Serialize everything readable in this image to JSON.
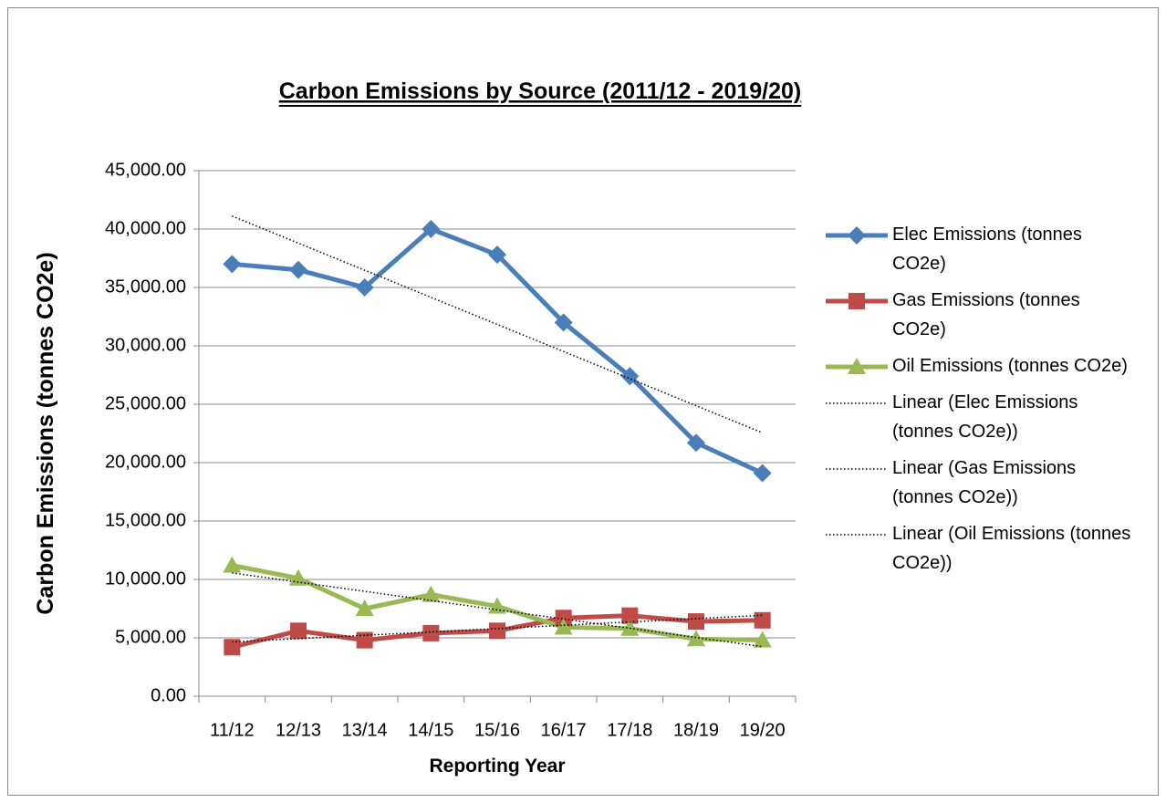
{
  "chart_data": {
    "type": "line",
    "title": "Carbon Emissions by Source (2011/12 - 2019/20)",
    "y_label": "Carbon Emissions (tonnes CO2e)",
    "x_label": "Reporting Year",
    "categories": [
      "11/12",
      "12/13",
      "13/14",
      "14/15",
      "15/16",
      "16/17",
      "17/18",
      "18/19",
      "19/20"
    ],
    "series": [
      {
        "name": "Elec Emissions (tonnes CO2e)",
        "color": "#4a7ebb",
        "marker": "diamond",
        "trendline_name": "Linear (Elec Emissions (tonnes CO2e))",
        "values": [
          37000,
          36500,
          35000,
          40000,
          37800,
          32000,
          27400,
          21700,
          19100
        ]
      },
      {
        "name": "Gas Emissions (tonnes CO2e)",
        "color": "#be4b48",
        "marker": "square",
        "trendline_name": "Linear (Gas Emissions (tonnes CO2e))",
        "values": [
          4200,
          5600,
          4800,
          5400,
          5600,
          6700,
          6900,
          6400,
          6500
        ]
      },
      {
        "name": "Oil Emissions (tonnes CO2e)",
        "color": "#98b954",
        "marker": "triangle",
        "trendline_name": "Linear (Oil Emissions (tonnes CO2e))",
        "values": [
          11200,
          10100,
          7500,
          8700,
          7700,
          5900,
          5800,
          4900,
          4800
        ]
      }
    ],
    "ylim": [
      0,
      45000
    ],
    "yticks": [
      {
        "value": 0,
        "label": "0.00"
      },
      {
        "value": 5000,
        "label": "5,000.00"
      },
      {
        "value": 10000,
        "label": "10,000.00"
      },
      {
        "value": 15000,
        "label": "15,000.00"
      },
      {
        "value": 20000,
        "label": "20,000.00"
      },
      {
        "value": 25000,
        "label": "25,000.00"
      },
      {
        "value": 30000,
        "label": "30,000.00"
      },
      {
        "value": 35000,
        "label": "35,000.00"
      },
      {
        "value": 40000,
        "label": "40,000.00"
      },
      {
        "value": 45000,
        "label": "45,000.00"
      }
    ],
    "grid": true,
    "legend": "right"
  }
}
